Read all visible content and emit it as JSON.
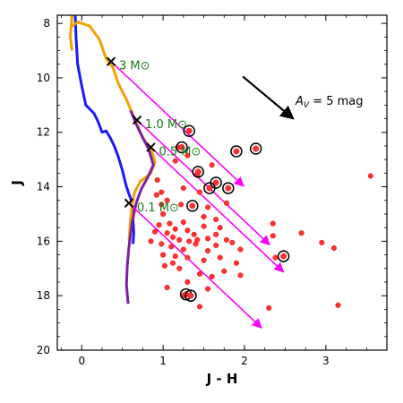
{
  "chart_data": {
    "type": "scatter",
    "xlabel": "J - H",
    "ylabel": "J",
    "xlim": [
      -0.3,
      3.75
    ],
    "ylim": [
      20,
      7.7
    ],
    "y_inverted": true,
    "x_ticks": [
      0,
      1,
      2,
      3
    ],
    "y_ticks": [
      8,
      10,
      12,
      14,
      16,
      18,
      20
    ],
    "grid": false,
    "isochrones": [
      {
        "color": "#1a1aff",
        "points": [
          [
            -0.08,
            7.7
          ],
          [
            -0.07,
            8.5
          ],
          [
            -0.05,
            9.5
          ],
          [
            0.0,
            10.3
          ],
          [
            0.05,
            11.0
          ],
          [
            0.15,
            11.3
          ],
          [
            0.2,
            11.6
          ],
          [
            0.25,
            12.0
          ],
          [
            0.3,
            11.95
          ],
          [
            0.35,
            12.2
          ],
          [
            0.4,
            12.5
          ],
          [
            0.45,
            12.9
          ],
          [
            0.5,
            13.4
          ],
          [
            0.55,
            14.0
          ],
          [
            0.62,
            14.6
          ],
          [
            0.63,
            15.2
          ],
          [
            0.64,
            15.7
          ],
          [
            0.63,
            16.1
          ]
        ]
      },
      {
        "color": "#f5a000",
        "points": [
          [
            -0.12,
            8.1
          ],
          [
            -0.05,
            7.95
          ],
          [
            0.1,
            8.1
          ],
          [
            0.22,
            8.6
          ],
          [
            0.3,
            9.3
          ],
          [
            0.38,
            9.6
          ],
          [
            0.45,
            10.2
          ],
          [
            0.55,
            10.8
          ],
          [
            0.65,
            11.5
          ],
          [
            0.75,
            12.2
          ],
          [
            0.85,
            12.6
          ],
          [
            0.9,
            13.1
          ],
          [
            0.85,
            13.5
          ],
          [
            0.72,
            13.8
          ],
          [
            0.65,
            14.2
          ],
          [
            0.62,
            14.6
          ],
          [
            0.6,
            15.2
          ],
          [
            0.58,
            16.0
          ]
        ]
      },
      {
        "color": "#f5a000",
        "points": [
          [
            -0.12,
            7.7
          ],
          [
            -0.14,
            8.5
          ],
          [
            -0.12,
            9.0
          ]
        ]
      },
      {
        "color": "#7b1fa2",
        "points": [
          [
            0.6,
            11.2
          ],
          [
            0.67,
            11.7
          ],
          [
            0.75,
            12.2
          ],
          [
            0.82,
            12.6
          ],
          [
            0.88,
            13.2
          ],
          [
            0.82,
            13.6
          ],
          [
            0.73,
            14.1
          ],
          [
            0.67,
            14.6
          ],
          [
            0.62,
            15.3
          ],
          [
            0.58,
            16.2
          ],
          [
            0.56,
            16.9
          ],
          [
            0.55,
            17.6
          ],
          [
            0.57,
            18.3
          ]
        ]
      }
    ],
    "mass_markers": [
      {
        "label": "3 M⊙",
        "x": 0.36,
        "y": 9.4
      },
      {
        "label": "1.0 M⊙",
        "x": 0.68,
        "y": 11.55
      },
      {
        "label": "0.5 M⊙",
        "x": 0.85,
        "y": 12.55
      },
      {
        "label": "0.1 M⊙",
        "x": 0.58,
        "y": 14.6
      }
    ],
    "reddening_vectors": [
      {
        "x0": 0.36,
        "y0": 9.4,
        "x1": 1.99,
        "y1": 13.98
      },
      {
        "x0": 0.68,
        "y0": 11.55,
        "x1": 2.31,
        "y1": 16.13
      },
      {
        "x0": 0.85,
        "y0": 12.55,
        "x1": 2.48,
        "y1": 17.13
      },
      {
        "x0": 0.58,
        "y0": 14.6,
        "x1": 2.21,
        "y1": 19.18
      }
    ],
    "extinction_arrow": {
      "x0": 1.98,
      "y0": 9.95,
      "x1": 2.6,
      "y1": 11.5,
      "label_main": "A",
      "label_sub": "V",
      "label_rest": " = 5 mag"
    },
    "stars": [
      [
        1.18,
        12.55
      ],
      [
        1.15,
        13.05
      ],
      [
        1.3,
        12.85
      ],
      [
        1.42,
        13.55
      ],
      [
        1.6,
        13.2
      ],
      [
        1.25,
        14.05
      ],
      [
        1.45,
        14.2
      ],
      [
        1.05,
        14.5
      ],
      [
        1.22,
        14.65
      ],
      [
        0.92,
        14.3
      ],
      [
        0.98,
        14.65
      ],
      [
        1.55,
        14.75
      ],
      [
        1.78,
        14.6
      ],
      [
        1.0,
        15.0
      ],
      [
        1.25,
        15.3
      ],
      [
        1.5,
        15.1
      ],
      [
        1.65,
        15.2
      ],
      [
        0.95,
        15.4
      ],
      [
        1.08,
        15.35
      ],
      [
        1.15,
        15.55
      ],
      [
        1.3,
        15.6
      ],
      [
        1.38,
        15.75
      ],
      [
        1.5,
        15.45
      ],
      [
        1.7,
        15.5
      ],
      [
        0.9,
        15.65
      ],
      [
        1.05,
        15.7
      ],
      [
        1.12,
        15.85
      ],
      [
        1.2,
        15.95
      ],
      [
        1.32,
        16.0
      ],
      [
        1.42,
        15.95
      ],
      [
        1.55,
        15.9
      ],
      [
        1.65,
        15.75
      ],
      [
        1.78,
        15.95
      ],
      [
        0.85,
        16.0
      ],
      [
        0.98,
        16.1
      ],
      [
        1.1,
        16.2
      ],
      [
        1.25,
        16.3
      ],
      [
        1.4,
        16.1
      ],
      [
        1.55,
        16.35
      ],
      [
        1.65,
        16.15
      ],
      [
        1.85,
        16.05
      ],
      [
        1.95,
        16.3
      ],
      [
        1.0,
        16.5
      ],
      [
        1.15,
        16.55
      ],
      [
        1.3,
        16.6
      ],
      [
        1.5,
        16.7
      ],
      [
        1.7,
        16.6
      ],
      [
        1.9,
        16.8
      ],
      [
        1.02,
        16.9
      ],
      [
        1.2,
        17.0
      ],
      [
        1.45,
        17.2
      ],
      [
        1.75,
        17.1
      ],
      [
        1.95,
        17.25
      ],
      [
        1.3,
        17.5
      ],
      [
        1.05,
        17.7
      ],
      [
        1.55,
        17.75
      ],
      [
        1.25,
        18.0
      ],
      [
        1.45,
        18.4
      ],
      [
        2.35,
        15.35
      ],
      [
        2.35,
        15.8
      ],
      [
        2.38,
        16.6
      ],
      [
        2.7,
        15.7
      ],
      [
        2.95,
        16.05
      ],
      [
        3.1,
        16.25
      ],
      [
        3.15,
        18.35
      ],
      [
        2.3,
        18.45
      ],
      [
        3.55,
        13.6
      ],
      [
        0.93,
        13.75
      ],
      [
        0.98,
        14.2
      ],
      [
        1.12,
        16.8
      ],
      [
        1.6,
        17.3
      ]
    ],
    "circled_stars": [
      [
        1.32,
        11.95
      ],
      [
        1.23,
        12.55
      ],
      [
        1.9,
        12.7
      ],
      [
        2.14,
        12.6
      ],
      [
        1.43,
        13.45
      ],
      [
        1.65,
        13.85
      ],
      [
        1.57,
        14.05
      ],
      [
        1.8,
        14.05
      ],
      [
        1.36,
        14.7
      ],
      [
        2.48,
        16.55
      ],
      [
        1.28,
        17.95
      ],
      [
        1.34,
        18.0
      ]
    ],
    "series": [
      {
        "name": "3 M⊙"
      },
      {
        "name": "1.0 M⊙"
      },
      {
        "name": "0.5 M⊙"
      },
      {
        "name": "0.1 M⊙"
      },
      {
        "name": "AV = 5 mag"
      }
    ],
    "colors": {
      "star_fill": "#ff3333",
      "vector": "#ff00ff",
      "marker": "#000000"
    }
  }
}
